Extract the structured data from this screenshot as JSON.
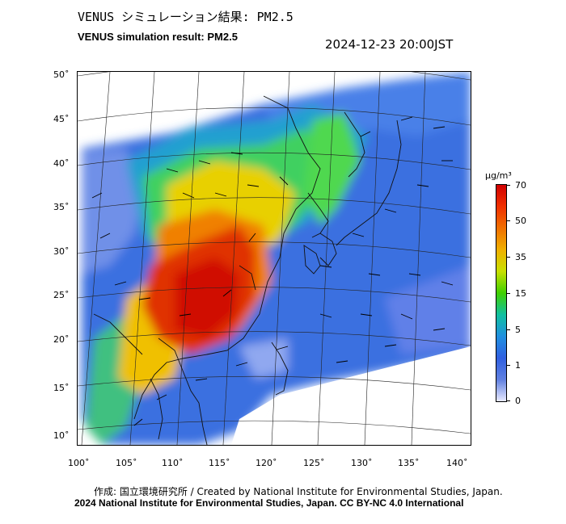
{
  "header": {
    "title_jp": "VENUS シミュレーション結果: PM2.5",
    "title_en": "VENUS simulation result: PM2.5",
    "timestamp": "2024-12-23 20:00JST"
  },
  "axes": {
    "lat_labels": [
      "50˚",
      "45˚",
      "40˚",
      "35˚",
      "30˚",
      "25˚",
      "20˚",
      "15˚",
      "10˚"
    ],
    "lon_labels": [
      "100˚",
      "105˚",
      "110˚",
      "115˚",
      "120˚",
      "125˚",
      "130˚",
      "135˚",
      "140˚"
    ]
  },
  "colorbar": {
    "unit": "μg/m³",
    "ticks": [
      "70",
      "50",
      "35",
      "15",
      "5",
      "1",
      "0"
    ],
    "colors": [
      "#d00000",
      "#f03000",
      "#f07000",
      "#f0b000",
      "#c8e000",
      "#40d000",
      "#10c0a0",
      "#2090e0",
      "#3060e0",
      "#6080e0",
      "#e8eaff"
    ]
  },
  "footer": {
    "credit": "作成: 国立環境研究所 / Created by National Institute for Environmental Studies, Japan.",
    "copyright": "2024 National Institute for Environmental Studies, Japan. CC BY-NC 4.0 International"
  }
}
